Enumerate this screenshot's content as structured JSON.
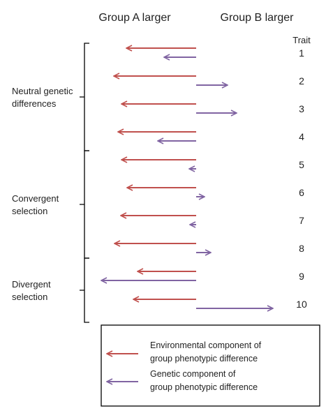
{
  "headers": {
    "group_a": "Group A larger",
    "group_b": "Group B larger",
    "trait": "Trait"
  },
  "groups": [
    {
      "lines": [
        "Neutral genetic",
        "differences"
      ],
      "traits": [
        1,
        4
      ]
    },
    {
      "lines": [
        "Convergent",
        "selection"
      ],
      "traits": [
        5,
        8
      ]
    },
    {
      "lines": [
        "Divergent",
        "selection"
      ],
      "traits": [
        9,
        10
      ]
    }
  ],
  "traits": [
    {
      "label": "1",
      "environmental": -100,
      "genetic": -46
    },
    {
      "label": "2",
      "environmental": -118,
      "genetic": 45
    },
    {
      "label": "3",
      "environmental": -107,
      "genetic": 58
    },
    {
      "label": "4",
      "environmental": -112,
      "genetic": -55
    },
    {
      "label": "5",
      "environmental": -107,
      "genetic": -10
    },
    {
      "label": "6",
      "environmental": -99,
      "genetic": 12
    },
    {
      "label": "7",
      "environmental": -108,
      "genetic": -9
    },
    {
      "label": "8",
      "environmental": -117,
      "genetic": 21
    },
    {
      "label": "9",
      "environmental": -84,
      "genetic": -136
    },
    {
      "label": "10",
      "environmental": -90,
      "genetic": 110
    }
  ],
  "legend": {
    "environmental": {
      "lines": [
        "Environmental component of",
        "group phenotypic difference"
      ],
      "color": "#c0504d"
    },
    "genetic": {
      "lines": [
        "Genetic component of",
        "group phenotypic difference"
      ],
      "color": "#8064a2"
    }
  }
}
